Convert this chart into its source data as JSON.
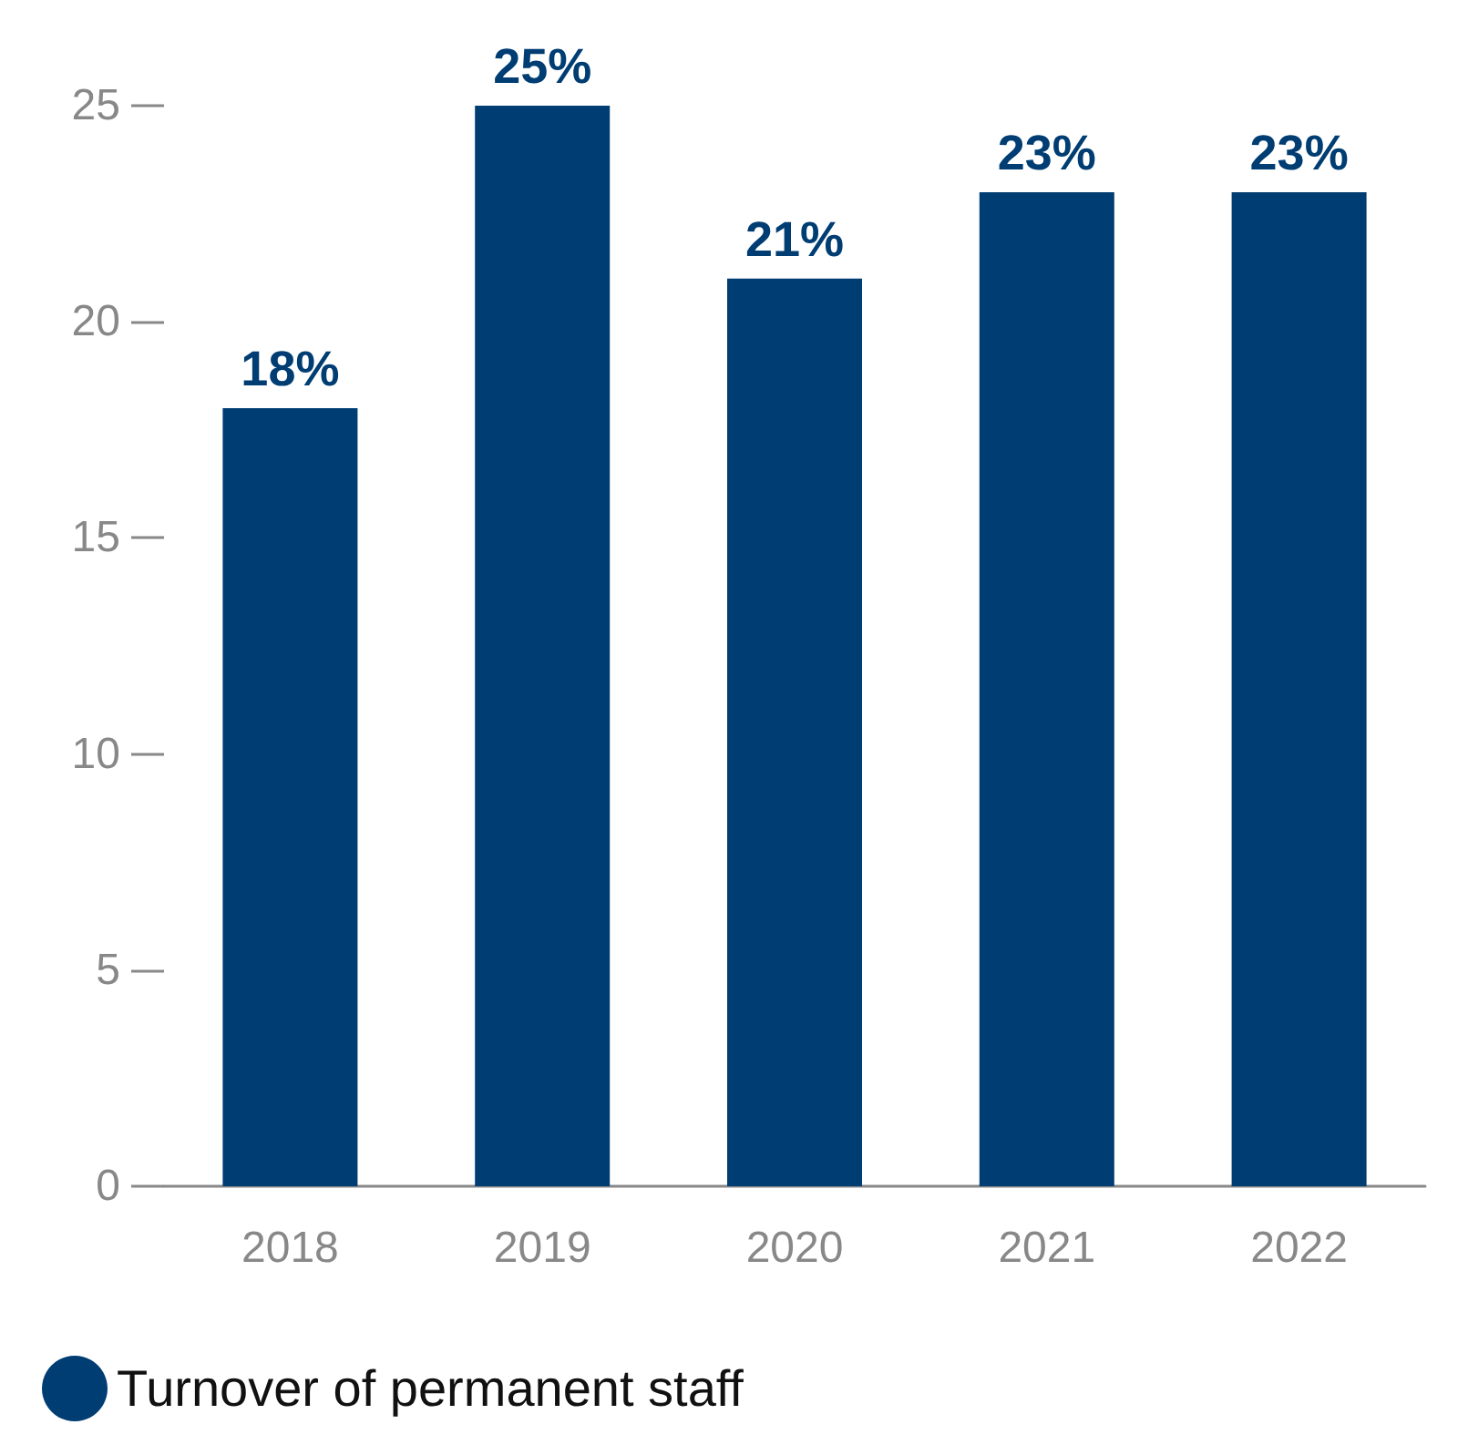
{
  "chart_data": {
    "type": "bar",
    "categories": [
      "2018",
      "2019",
      "2020",
      "2021",
      "2022"
    ],
    "series": [
      {
        "name": "Turnover of permanent staff",
        "color": "#003d73",
        "values": [
          18,
          25,
          21,
          23,
          23
        ],
        "value_labels": [
          "18%",
          "25%",
          "21%",
          "23%",
          "23%"
        ]
      }
    ],
    "ylim": [
      0,
      25
    ],
    "yticks": [
      0,
      5,
      10,
      15,
      20,
      25
    ],
    "grid": false,
    "legend": "bottom left"
  }
}
